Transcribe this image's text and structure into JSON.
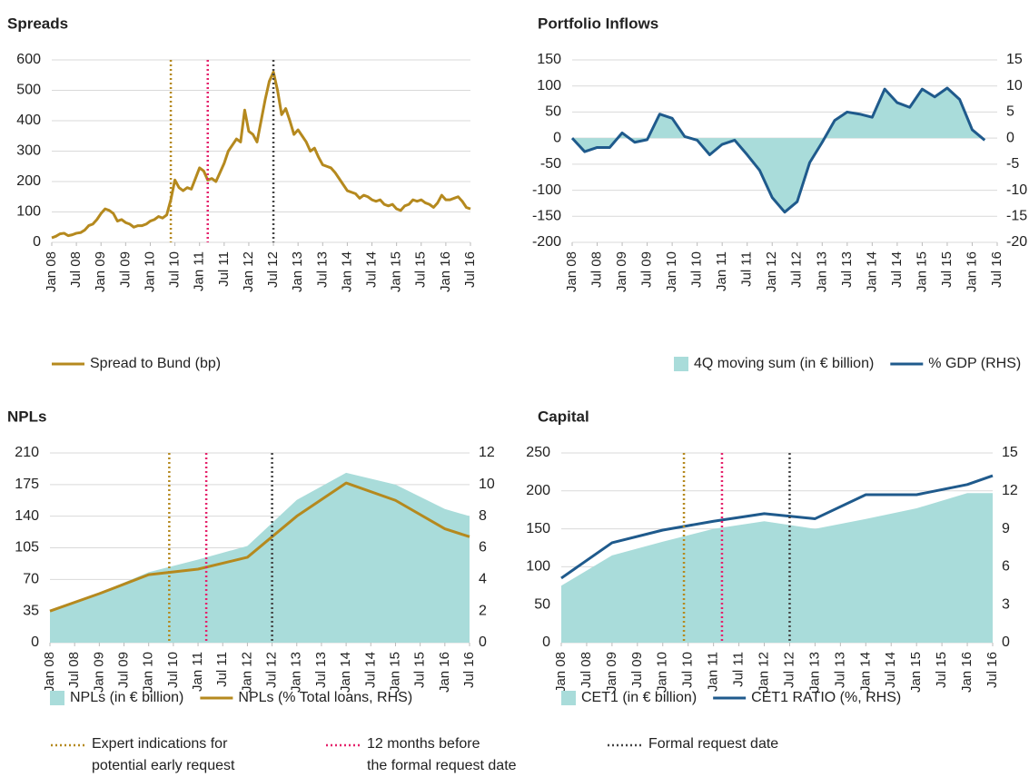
{
  "events": [
    {
      "name": "Expert indications for\npotential early request",
      "x": "2010-06",
      "color": "#b5891e"
    },
    {
      "name": "12 months before\nthe formal request date",
      "x": "2011-03",
      "color": "#e5226b"
    },
    {
      "name": "Formal request date",
      "x": "2012-07",
      "color": "#444444"
    }
  ],
  "chart_data": [
    {
      "type": "line",
      "title": "Spreads",
      "show_events": true,
      "grid": true,
      "xlim": [
        "2008-01",
        "2016-07"
      ],
      "xticks": [
        {
          "value": "2008-01",
          "label": "Jan 08"
        },
        {
          "value": "2008-07",
          "label": "Jul 08"
        },
        {
          "value": "2009-01",
          "label": "Jan 09"
        },
        {
          "value": "2009-07",
          "label": "Jul 09"
        },
        {
          "value": "2010-01",
          "label": "Jan 10"
        },
        {
          "value": "2010-07",
          "label": "Jul 10"
        },
        {
          "value": "2011-01",
          "label": "Jan 11"
        },
        {
          "value": "2011-07",
          "label": "Jul 11"
        },
        {
          "value": "2012-01",
          "label": "Jan 12"
        },
        {
          "value": "2012-07",
          "label": "Jul 12"
        },
        {
          "value": "2013-01",
          "label": "Jan 13"
        },
        {
          "value": "2013-07",
          "label": "Jul 13"
        },
        {
          "value": "2014-01",
          "label": "Jan 14"
        },
        {
          "value": "2014-07",
          "label": "Jul 14"
        },
        {
          "value": "2015-01",
          "label": "Jan 15"
        },
        {
          "value": "2015-07",
          "label": "Jul 15"
        },
        {
          "value": "2016-01",
          "label": "Jan 16"
        },
        {
          "value": "2016-07",
          "label": "Jul 16"
        }
      ],
      "ylim": [
        0,
        600
      ],
      "yticks": [
        0,
        100,
        200,
        300,
        400,
        500,
        600
      ],
      "x": [
        "2008-01",
        "2008-02",
        "2008-03",
        "2008-04",
        "2008-05",
        "2008-06",
        "2008-07",
        "2008-08",
        "2008-09",
        "2008-10",
        "2008-11",
        "2008-12",
        "2009-01",
        "2009-02",
        "2009-03",
        "2009-04",
        "2009-05",
        "2009-06",
        "2009-07",
        "2009-08",
        "2009-09",
        "2009-10",
        "2009-11",
        "2009-12",
        "2010-01",
        "2010-02",
        "2010-03",
        "2010-04",
        "2010-05",
        "2010-06",
        "2010-07",
        "2010-08",
        "2010-09",
        "2010-10",
        "2010-11",
        "2010-12",
        "2011-01",
        "2011-02",
        "2011-03",
        "2011-04",
        "2011-05",
        "2011-06",
        "2011-07",
        "2011-08",
        "2011-09",
        "2011-10",
        "2011-11",
        "2011-12",
        "2012-01",
        "2012-02",
        "2012-03",
        "2012-04",
        "2012-05",
        "2012-06",
        "2012-07",
        "2012-08",
        "2012-09",
        "2012-10",
        "2012-11",
        "2012-12",
        "2013-01",
        "2013-02",
        "2013-03",
        "2013-04",
        "2013-05",
        "2013-06",
        "2013-07",
        "2013-08",
        "2013-09",
        "2013-10",
        "2013-11",
        "2013-12",
        "2014-01",
        "2014-02",
        "2014-03",
        "2014-04",
        "2014-05",
        "2014-06",
        "2014-07",
        "2014-08",
        "2014-09",
        "2014-10",
        "2014-11",
        "2014-12",
        "2015-01",
        "2015-02",
        "2015-03",
        "2015-04",
        "2015-05",
        "2015-06",
        "2015-07",
        "2015-08",
        "2015-09",
        "2015-10",
        "2015-11",
        "2015-12",
        "2016-01",
        "2016-02",
        "2016-03",
        "2016-04",
        "2016-05",
        "2016-06",
        "2016-07"
      ],
      "series": [
        {
          "name": "Spread to Bund (bp)",
          "type": "line",
          "color": "#b5891e",
          "values": [
            15,
            20,
            28,
            30,
            22,
            25,
            30,
            32,
            40,
            55,
            60,
            75,
            95,
            110,
            105,
            95,
            70,
            75,
            65,
            60,
            50,
            55,
            55,
            60,
            70,
            75,
            85,
            80,
            90,
            140,
            205,
            180,
            170,
            180,
            175,
            210,
            245,
            235,
            205,
            210,
            200,
            230,
            260,
            300,
            320,
            340,
            330,
            435,
            365,
            355,
            330,
            400,
            470,
            530,
            560,
            500,
            420,
            440,
            400,
            355,
            370,
            350,
            330,
            300,
            310,
            280,
            255,
            250,
            245,
            230,
            210,
            190,
            170,
            165,
            160,
            145,
            155,
            150,
            140,
            135,
            140,
            125,
            120,
            125,
            110,
            105,
            120,
            125,
            140,
            135,
            140,
            130,
            125,
            115,
            130,
            155,
            140,
            140,
            145,
            150,
            135,
            115,
            110
          ]
        }
      ]
    },
    {
      "type": "combo",
      "title": "Portfolio Inflows",
      "show_events": false,
      "grid": true,
      "xlim": [
        "2008-01",
        "2016-07"
      ],
      "xticks": [
        {
          "value": "2008-01",
          "label": "Jan 08"
        },
        {
          "value": "2008-07",
          "label": "Jul 08"
        },
        {
          "value": "2009-01",
          "label": "Jan 09"
        },
        {
          "value": "2009-07",
          "label": "Jul 09"
        },
        {
          "value": "2010-01",
          "label": "Jan 10"
        },
        {
          "value": "2010-07",
          "label": "Jul 10"
        },
        {
          "value": "2011-01",
          "label": "Jan 11"
        },
        {
          "value": "2011-07",
          "label": "Jul 11"
        },
        {
          "value": "2012-01",
          "label": "Jan 12"
        },
        {
          "value": "2012-07",
          "label": "Jul 12"
        },
        {
          "value": "2013-01",
          "label": "Jan 13"
        },
        {
          "value": "2013-07",
          "label": "Jul 13"
        },
        {
          "value": "2014-01",
          "label": "Jan 14"
        },
        {
          "value": "2014-07",
          "label": "Jul 14"
        },
        {
          "value": "2015-01",
          "label": "Jan 15"
        },
        {
          "value": "2015-07",
          "label": "Jul 15"
        },
        {
          "value": "2016-01",
          "label": "Jan 16"
        },
        {
          "value": "2016-07",
          "label": "Jul 16"
        }
      ],
      "ylim": [
        -200,
        150
      ],
      "yticks": [
        -200,
        -150,
        -100,
        -50,
        0,
        50,
        100,
        150
      ],
      "y2lim": [
        -20,
        15
      ],
      "y2ticks": [
        -20,
        -15,
        -10,
        -5,
        0,
        5,
        10,
        15
      ],
      "x": [
        "2008-01",
        "2008-04",
        "2008-07",
        "2008-10",
        "2009-01",
        "2009-04",
        "2009-07",
        "2009-10",
        "2010-01",
        "2010-04",
        "2010-07",
        "2010-10",
        "2011-01",
        "2011-04",
        "2011-07",
        "2011-10",
        "2012-01",
        "2012-04",
        "2012-07",
        "2012-10",
        "2013-01",
        "2013-04",
        "2013-07",
        "2013-10",
        "2014-01",
        "2014-04",
        "2014-07",
        "2014-10",
        "2015-01",
        "2015-04",
        "2015-07",
        "2015-10",
        "2016-01",
        "2016-04"
      ],
      "series": [
        {
          "name": "4Q moving sum (in € billion)",
          "type": "area",
          "color": "#a9dcda",
          "values": [
            0,
            -27,
            -18,
            -18,
            10,
            -8,
            -3,
            46,
            38,
            3,
            -4,
            -32,
            -12,
            -4,
            -32,
            -62,
            -114,
            -142,
            -122,
            -47,
            -8,
            34,
            50,
            46,
            40,
            94,
            68,
            59,
            94,
            79,
            96,
            74,
            16,
            -4
          ]
        },
        {
          "name": "% GDP (RHS)",
          "type": "line",
          "axis": "y2",
          "color": "#1f5a8c",
          "values": [
            0,
            -2.6,
            -1.8,
            -1.8,
            1,
            -0.8,
            -0.3,
            4.6,
            3.8,
            0.3,
            -0.4,
            -3.2,
            -1.2,
            -0.4,
            -3.2,
            -6.2,
            -11.4,
            -14.2,
            -12.2,
            -4.7,
            -0.8,
            3.4,
            5,
            4.6,
            4,
            9.4,
            6.8,
            5.9,
            9.4,
            7.9,
            9.6,
            7.4,
            1.6,
            -0.4
          ]
        }
      ]
    },
    {
      "type": "combo",
      "title": "NPLs",
      "show_events": true,
      "grid": true,
      "xlim": [
        "2008-01",
        "2016-07"
      ],
      "xticks": [
        {
          "value": "2008-01",
          "label": "Jan 08"
        },
        {
          "value": "2008-07",
          "label": "Jul 08"
        },
        {
          "value": "2009-01",
          "label": "Jan 09"
        },
        {
          "value": "2009-07",
          "label": "Jul 09"
        },
        {
          "value": "2010-01",
          "label": "Jan 10"
        },
        {
          "value": "2010-07",
          "label": "Jul 10"
        },
        {
          "value": "2011-01",
          "label": "Jan 11"
        },
        {
          "value": "2011-07",
          "label": "Jul 11"
        },
        {
          "value": "2012-01",
          "label": "Jan 12"
        },
        {
          "value": "2012-07",
          "label": "Jul 12"
        },
        {
          "value": "2013-01",
          "label": "Jan 13"
        },
        {
          "value": "2013-07",
          "label": "Jul 13"
        },
        {
          "value": "2014-01",
          "label": "Jan 14"
        },
        {
          "value": "2014-07",
          "label": "Jul 14"
        },
        {
          "value": "2015-01",
          "label": "Jan 15"
        },
        {
          "value": "2015-07",
          "label": "Jul 15"
        },
        {
          "value": "2016-01",
          "label": "Jan 16"
        },
        {
          "value": "2016-07",
          "label": "Jul 16"
        }
      ],
      "ylim": [
        0,
        210
      ],
      "yticks": [
        0,
        35,
        70,
        105,
        140,
        175,
        210
      ],
      "y2lim": [
        0,
        12
      ],
      "y2ticks": [
        0,
        2,
        4,
        6,
        8,
        10,
        12
      ],
      "x": [
        "2008-01",
        "2009-01",
        "2010-01",
        "2011-01",
        "2012-01",
        "2013-01",
        "2014-01",
        "2015-01",
        "2016-01",
        "2016-07"
      ],
      "series": [
        {
          "name": "NPLs (in € billion)",
          "type": "area",
          "color": "#a9dcda",
          "values": [
            35,
            55,
            78,
            92,
            107,
            158,
            188,
            175,
            148,
            140
          ]
        },
        {
          "name": "NPLs (% Total loans, RHS)",
          "type": "line",
          "axis": "y2",
          "color": "#b5891e",
          "values": [
            2.0,
            3.1,
            4.3,
            4.65,
            5.4,
            8.0,
            10.1,
            9.0,
            7.2,
            6.7
          ]
        }
      ]
    },
    {
      "type": "combo",
      "title": "Capital",
      "show_events": true,
      "grid": true,
      "xlim": [
        "2008-01",
        "2016-07"
      ],
      "xticks": [
        {
          "value": "2008-01",
          "label": "Jan 08"
        },
        {
          "value": "2008-07",
          "label": "Jul 08"
        },
        {
          "value": "2009-01",
          "label": "Jan 09"
        },
        {
          "value": "2009-07",
          "label": "Jul 09"
        },
        {
          "value": "2010-01",
          "label": "Jan 10"
        },
        {
          "value": "2010-07",
          "label": "Jul 10"
        },
        {
          "value": "2011-01",
          "label": "Jan 11"
        },
        {
          "value": "2011-07",
          "label": "Jul 11"
        },
        {
          "value": "2012-01",
          "label": "Jan 12"
        },
        {
          "value": "2012-07",
          "label": "Jul 12"
        },
        {
          "value": "2013-01",
          "label": "Jan 13"
        },
        {
          "value": "2013-07",
          "label": "Jul 13"
        },
        {
          "value": "2014-01",
          "label": "Jan 14"
        },
        {
          "value": "2014-07",
          "label": "Jul 14"
        },
        {
          "value": "2015-01",
          "label": "Jan 15"
        },
        {
          "value": "2015-07",
          "label": "Jul 15"
        },
        {
          "value": "2016-01",
          "label": "Jan 16"
        },
        {
          "value": "2016-07",
          "label": "Jul 16"
        }
      ],
      "ylim": [
        0,
        250
      ],
      "yticks": [
        0,
        50,
        100,
        150,
        200,
        250
      ],
      "y2lim": [
        0,
        15
      ],
      "y2ticks": [
        0,
        3,
        6,
        9,
        12,
        15
      ],
      "x": [
        "2008-01",
        "2009-01",
        "2010-01",
        "2011-01",
        "2012-01",
        "2013-01",
        "2014-01",
        "2015-01",
        "2016-01",
        "2016-07"
      ],
      "series": [
        {
          "name": "CET1 (in € billion)",
          "type": "area",
          "color": "#a9dcda",
          "values": [
            75,
            115,
            133,
            150,
            160,
            150,
            163,
            177,
            197,
            197
          ]
        },
        {
          "name": "CET1 RATIO (%, RHS)",
          "type": "line",
          "axis": "y2",
          "color": "#1f5a8c",
          "values": [
            5.1,
            7.9,
            8.9,
            9.6,
            10.2,
            9.8,
            11.7,
            11.7,
            12.5,
            13.2
          ]
        }
      ]
    }
  ]
}
